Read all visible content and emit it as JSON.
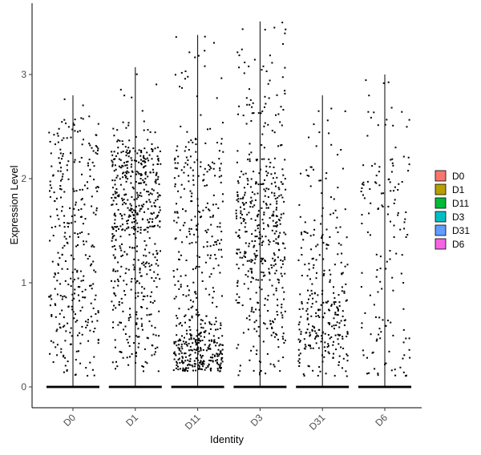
{
  "chart_data": {
    "type": "scatter",
    "subtype": "violin-jitter",
    "title": "",
    "xlabel": "Identity",
    "ylabel": "Expression Level",
    "ylim": [
      -0.18,
      3.58
    ],
    "yticks": [
      0,
      1,
      2,
      3
    ],
    "categories": [
      "D0",
      "D1",
      "D11",
      "D3",
      "D31",
      "D6"
    ],
    "grid": false,
    "legend": {
      "placement": "right",
      "entries": [
        "D0",
        "D1",
        "D11",
        "D3",
        "D31",
        "D6"
      ]
    },
    "colors": {
      "D0": "#F8766D",
      "D1": "#B79F00",
      "D11": "#00BA38",
      "D3": "#00BFC4",
      "D31": "#619CFF",
      "D6": "#F564E3"
    },
    "series": [
      {
        "name": "D0",
        "max": 2.8,
        "median": 0
      },
      {
        "name": "D1",
        "max": 3.07,
        "median": 0
      },
      {
        "name": "D11",
        "max": 3.38,
        "median": 0
      },
      {
        "name": "D3",
        "max": 3.51,
        "median": 0
      },
      {
        "name": "D31",
        "max": 2.8,
        "median": 0
      },
      {
        "name": "D6",
        "max": 3.0,
        "median": 0
      }
    ]
  }
}
